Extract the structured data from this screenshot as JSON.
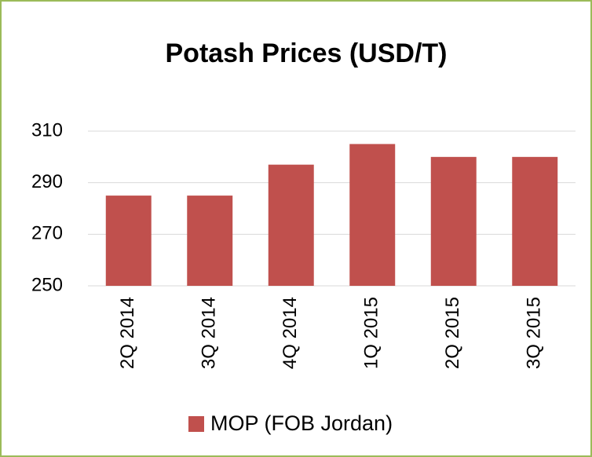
{
  "chart_data": {
    "type": "bar",
    "title": "Potash Prices (USD/T)",
    "categories": [
      "2Q 2014",
      "3Q 2014",
      "4Q 2014",
      "1Q 2015",
      "2Q 2015",
      "3Q 2015"
    ],
    "series": [
      {
        "name": "MOP (FOB Jordan)",
        "color": "#c0504d",
        "values": [
          285,
          285,
          297,
          305,
          300,
          300
        ]
      }
    ],
    "ylim": [
      250,
      310
    ],
    "yticks": [
      250,
      270,
      290,
      310
    ],
    "grid": true,
    "legend": "bottom"
  }
}
